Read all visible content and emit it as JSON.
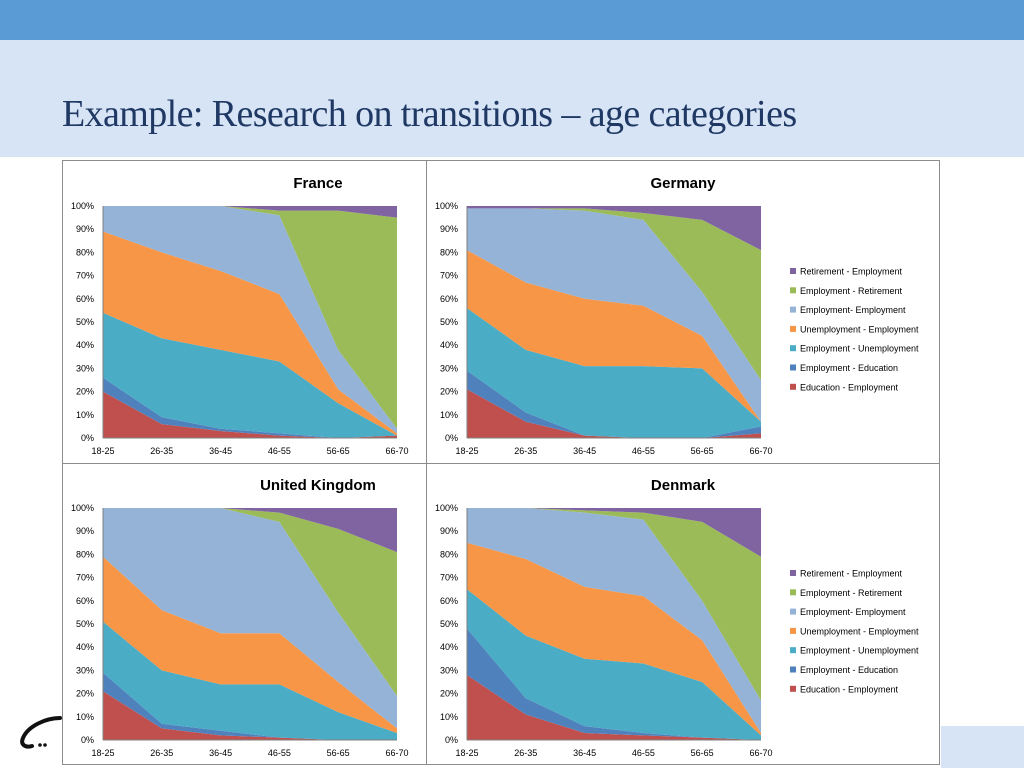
{
  "title": "Example: Research on transitions – age categories",
  "colors": {
    "accent_bar": "#5b9bd5",
    "title_band": "#d6e4f5",
    "series": [
      "#c0504d",
      "#4f81bd",
      "#4bacc6",
      "#f79646",
      "#95b3d7",
      "#9bbb59",
      "#8064a2"
    ]
  },
  "legend_labels": [
    "Retirement - Employment",
    "Employment - Retirement",
    "Employment- Employment",
    "Unemployment - Employment",
    "Employment - Unemployment",
    "Employment - Education",
    "Education - Employment"
  ],
  "chart_data": [
    {
      "type": "area",
      "stacked": true,
      "title": "France",
      "categories": [
        "18-25",
        "26-35",
        "36-45",
        "46-55",
        "56-65",
        "66-70"
      ],
      "y_ticks": [
        "0%",
        "10%",
        "20%",
        "30%",
        "40%",
        "50%",
        "60%",
        "70%",
        "80%",
        "90%",
        "100%"
      ],
      "ylim": [
        0,
        100
      ],
      "legend": "none",
      "series": [
        {
          "name": "Education - Employment",
          "values": [
            20,
            6,
            3,
            1,
            0,
            1
          ]
        },
        {
          "name": "Employment - Education",
          "values": [
            6,
            3,
            1,
            1,
            0,
            0
          ]
        },
        {
          "name": "Employment - Unemployment",
          "values": [
            28,
            34,
            34,
            31,
            15,
            0
          ]
        },
        {
          "name": "Unemployment - Employment",
          "values": [
            35,
            37,
            34,
            29,
            6,
            1
          ]
        },
        {
          "name": "Employment- Employment",
          "values": [
            11,
            20,
            28,
            34,
            17,
            2
          ]
        },
        {
          "name": "Employment - Retirement",
          "values": [
            0,
            0,
            0,
            2,
            60,
            91
          ]
        },
        {
          "name": "Retirement - Employment",
          "values": [
            0,
            0,
            0,
            2,
            2,
            5
          ]
        }
      ]
    },
    {
      "type": "area",
      "stacked": true,
      "title": "Germany",
      "categories": [
        "18-25",
        "26-35",
        "36-45",
        "46-55",
        "56-65",
        "66-70"
      ],
      "y_ticks": [
        "0%",
        "10%",
        "20%",
        "30%",
        "40%",
        "50%",
        "60%",
        "70%",
        "80%",
        "90%",
        "100%"
      ],
      "ylim": [
        0,
        100
      ],
      "legend": "right",
      "series": [
        {
          "name": "Education - Employment",
          "values": [
            21,
            7,
            1,
            0,
            0,
            2
          ]
        },
        {
          "name": "Employment - Education",
          "values": [
            8,
            4,
            0,
            0,
            0,
            3
          ]
        },
        {
          "name": "Employment - Unemployment",
          "values": [
            27,
            27,
            30,
            31,
            30,
            2
          ]
        },
        {
          "name": "Unemployment - Employment",
          "values": [
            25,
            29,
            29,
            26,
            14,
            0
          ]
        },
        {
          "name": "Employment- Employment",
          "values": [
            18,
            32,
            38,
            37,
            19,
            18
          ]
        },
        {
          "name": "Employment - Retirement",
          "values": [
            0,
            0,
            1,
            3,
            31,
            56
          ]
        },
        {
          "name": "Retirement - Employment",
          "values": [
            1,
            1,
            1,
            3,
            6,
            19
          ]
        }
      ]
    },
    {
      "type": "area",
      "stacked": true,
      "title": "United Kingdom",
      "categories": [
        "18-25",
        "26-35",
        "36-45",
        "46-55",
        "56-65",
        "66-70"
      ],
      "y_ticks": [
        "0%",
        "10%",
        "20%",
        "30%",
        "40%",
        "50%",
        "60%",
        "70%",
        "80%",
        "90%",
        "100%"
      ],
      "ylim": [
        0,
        100
      ],
      "legend": "none",
      "series": [
        {
          "name": "Education - Employment",
          "values": [
            21,
            5,
            2,
            1,
            0,
            0
          ]
        },
        {
          "name": "Employment - Education",
          "values": [
            8,
            2,
            2,
            0,
            0,
            0
          ]
        },
        {
          "name": "Employment - Unemployment",
          "values": [
            22,
            23,
            20,
            23,
            12,
            3
          ]
        },
        {
          "name": "Unemployment - Employment",
          "values": [
            28,
            26,
            22,
            22,
            13,
            2
          ]
        },
        {
          "name": "Employment- Employment",
          "values": [
            21,
            44,
            54,
            48,
            30,
            14
          ]
        },
        {
          "name": "Employment - Retirement",
          "values": [
            0,
            0,
            0,
            4,
            36,
            62
          ]
        },
        {
          "name": "Retirement - Employment",
          "values": [
            0,
            0,
            0,
            2,
            9,
            19
          ]
        }
      ]
    },
    {
      "type": "area",
      "stacked": true,
      "title": "Denmark",
      "categories": [
        "18-25",
        "26-35",
        "36-45",
        "46-55",
        "56-65",
        "66-70"
      ],
      "y_ticks": [
        "0%",
        "10%",
        "20%",
        "30%",
        "40%",
        "50%",
        "60%",
        "70%",
        "80%",
        "90%",
        "100%"
      ],
      "ylim": [
        0,
        100
      ],
      "legend": "right",
      "series": [
        {
          "name": "Education - Employment",
          "values": [
            28,
            11,
            3,
            2,
            1,
            0
          ]
        },
        {
          "name": "Employment - Education",
          "values": [
            20,
            7,
            3,
            1,
            0,
            0
          ]
        },
        {
          "name": "Employment - Unemployment",
          "values": [
            17,
            27,
            29,
            30,
            24,
            2
          ]
        },
        {
          "name": "Unemployment - Employment",
          "values": [
            20,
            33,
            31,
            29,
            18,
            1
          ]
        },
        {
          "name": "Employment- Employment",
          "values": [
            15,
            22,
            32,
            33,
            17,
            14
          ]
        },
        {
          "name": "Employment - Retirement",
          "values": [
            0,
            0,
            1,
            3,
            34,
            62
          ]
        },
        {
          "name": "Retirement - Employment",
          "values": [
            0,
            0,
            1,
            2,
            6,
            21
          ]
        }
      ]
    }
  ]
}
